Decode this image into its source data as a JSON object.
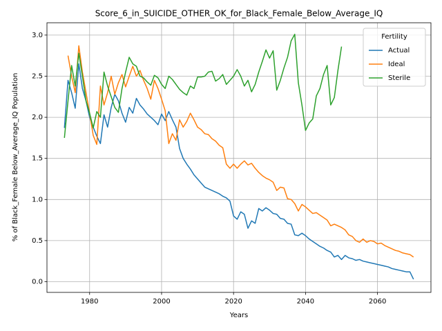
{
  "chart_data": {
    "type": "line",
    "title": "Score_6_in_SUICIDE_OTHER_OK_for_Black_Female_Below_Average_IQ",
    "x_label": "Years",
    "y_label": "% of Black_Female Below_Average_IQ Population",
    "x": [
      1973,
      1974,
      1975,
      1976,
      1977,
      1978,
      1979,
      1980,
      1981,
      1982,
      1983,
      1984,
      1985,
      1986,
      1987,
      1988,
      1989,
      1990,
      1991,
      1992,
      1993,
      1994,
      1995,
      1996,
      1997,
      1998,
      1999,
      2000,
      2001,
      2002,
      2003,
      2004,
      2005,
      2006,
      2007,
      2008,
      2009,
      2010,
      2011,
      2012,
      2013,
      2014,
      2015,
      2016,
      2017,
      2018,
      2019,
      2020,
      2021,
      2022,
      2023,
      2024,
      2025,
      2026,
      2027,
      2028,
      2029,
      2030,
      2031,
      2032,
      2033,
      2034,
      2035,
      2036,
      2037,
      2038,
      2039,
      2040,
      2041,
      2042,
      2043,
      2044,
      2045,
      2046,
      2047,
      2048,
      2049,
      2050,
      2051,
      2052,
      2053,
      2054,
      2055,
      2056,
      2057,
      2058,
      2059,
      2060,
      2061,
      2062,
      2063,
      2064,
      2065,
      2066,
      2067,
      2068,
      2069,
      2070
    ],
    "series": [
      {
        "name": "Actual",
        "color": "#1f77b4",
        "values": [
          1.87,
          2.45,
          2.3,
          2.11,
          2.65,
          2.35,
          2.2,
          2.0,
          1.88,
          1.77,
          1.68,
          2.03,
          1.88,
          2.12,
          2.28,
          2.2,
          2.05,
          1.94,
          2.12,
          2.05,
          2.23,
          2.15,
          2.1,
          2.04,
          2.0,
          1.96,
          1.91,
          2.04,
          1.96,
          2.07,
          1.97,
          1.88,
          1.62,
          1.5,
          1.43,
          1.37,
          1.3,
          1.25,
          1.2,
          1.15,
          1.13,
          1.11,
          1.09,
          1.07,
          1.04,
          1.02,
          0.98,
          0.8,
          0.76,
          0.85,
          0.82,
          0.65,
          0.74,
          0.71,
          0.89,
          0.86,
          0.9,
          0.87,
          0.83,
          0.82,
          0.77,
          0.76,
          0.71,
          0.7,
          0.57,
          0.56,
          0.59,
          0.56,
          0.52,
          0.49,
          0.46,
          0.43,
          0.41,
          0.38,
          0.36,
          0.3,
          0.32,
          0.27,
          0.32,
          0.29,
          0.28,
          0.26,
          0.27,
          0.25,
          0.24,
          0.23,
          0.22,
          0.21,
          0.2,
          0.19,
          0.18,
          0.16,
          0.15,
          0.14,
          0.13,
          0.12,
          0.12,
          0.03
        ]
      },
      {
        "name": "Ideal",
        "color": "#ff7f0e",
        "values": [
          null,
          2.75,
          2.5,
          2.3,
          2.87,
          2.55,
          2.3,
          2.05,
          1.78,
          1.67,
          2.38,
          2.15,
          2.3,
          2.5,
          2.28,
          2.42,
          2.52,
          2.37,
          2.5,
          2.62,
          2.5,
          2.57,
          2.45,
          2.35,
          2.22,
          2.45,
          2.35,
          2.22,
          2.08,
          1.68,
          1.8,
          1.72,
          1.97,
          1.88,
          1.95,
          2.05,
          1.97,
          1.88,
          1.85,
          1.8,
          1.79,
          1.74,
          1.71,
          1.66,
          1.63,
          1.43,
          1.38,
          1.43,
          1.38,
          1.43,
          1.47,
          1.42,
          1.44,
          1.38,
          1.33,
          1.29,
          1.26,
          1.24,
          1.21,
          1.11,
          1.15,
          1.14,
          1.01,
          1.0,
          0.95,
          0.86,
          0.94,
          0.91,
          0.87,
          0.83,
          0.84,
          0.81,
          0.78,
          0.75,
          0.68,
          0.7,
          0.68,
          0.66,
          0.63,
          0.57,
          0.55,
          0.5,
          0.48,
          0.52,
          0.48,
          0.5,
          0.49,
          0.46,
          0.47,
          0.44,
          0.42,
          0.4,
          0.38,
          0.37,
          0.35,
          0.34,
          0.33,
          0.3
        ]
      },
      {
        "name": "Sterile",
        "color": "#2ca02c",
        "values": [
          1.75,
          2.2,
          2.63,
          2.38,
          2.78,
          2.5,
          2.2,
          2.05,
          1.87,
          2.07,
          2.0,
          2.55,
          2.38,
          2.25,
          2.12,
          2.06,
          2.35,
          2.55,
          2.73,
          2.65,
          2.62,
          2.5,
          2.48,
          2.43,
          2.39,
          2.51,
          2.48,
          2.4,
          2.35,
          2.5,
          2.46,
          2.4,
          2.34,
          2.3,
          2.27,
          2.38,
          2.35,
          2.49,
          2.49,
          2.5,
          2.55,
          2.56,
          2.44,
          2.47,
          2.52,
          2.4,
          2.45,
          2.5,
          2.58,
          2.5,
          2.38,
          2.45,
          2.31,
          2.4,
          2.55,
          2.68,
          2.82,
          2.72,
          2.81,
          2.33,
          2.45,
          2.6,
          2.73,
          2.93,
          3.01,
          2.42,
          2.15,
          1.84,
          1.93,
          1.98,
          2.26,
          2.35,
          2.52,
          2.63,
          2.15,
          2.24,
          2.57,
          2.86,
          null,
          null,
          null,
          null,
          null,
          null,
          null,
          null,
          null,
          null,
          null,
          null,
          null,
          null,
          null,
          null,
          null,
          null,
          null,
          null
        ]
      }
    ],
    "xlim": [
      1968.15,
      2074.85
    ],
    "xticks": [
      1980,
      2000,
      2020,
      2040,
      2060
    ],
    "ylim": [
      -0.13,
      3.15
    ],
    "yticks": [
      {
        "value": 0,
        "label": "0.0"
      },
      0.5,
      {
        "value": 1,
        "label": "1.0"
      },
      1.5,
      {
        "value": 2,
        "label": "2.0"
      },
      2.5,
      {
        "value": 3,
        "label": "3.0"
      }
    ],
    "grid": true,
    "legend_title": "Fertility",
    "legend_position": "upper right"
  }
}
